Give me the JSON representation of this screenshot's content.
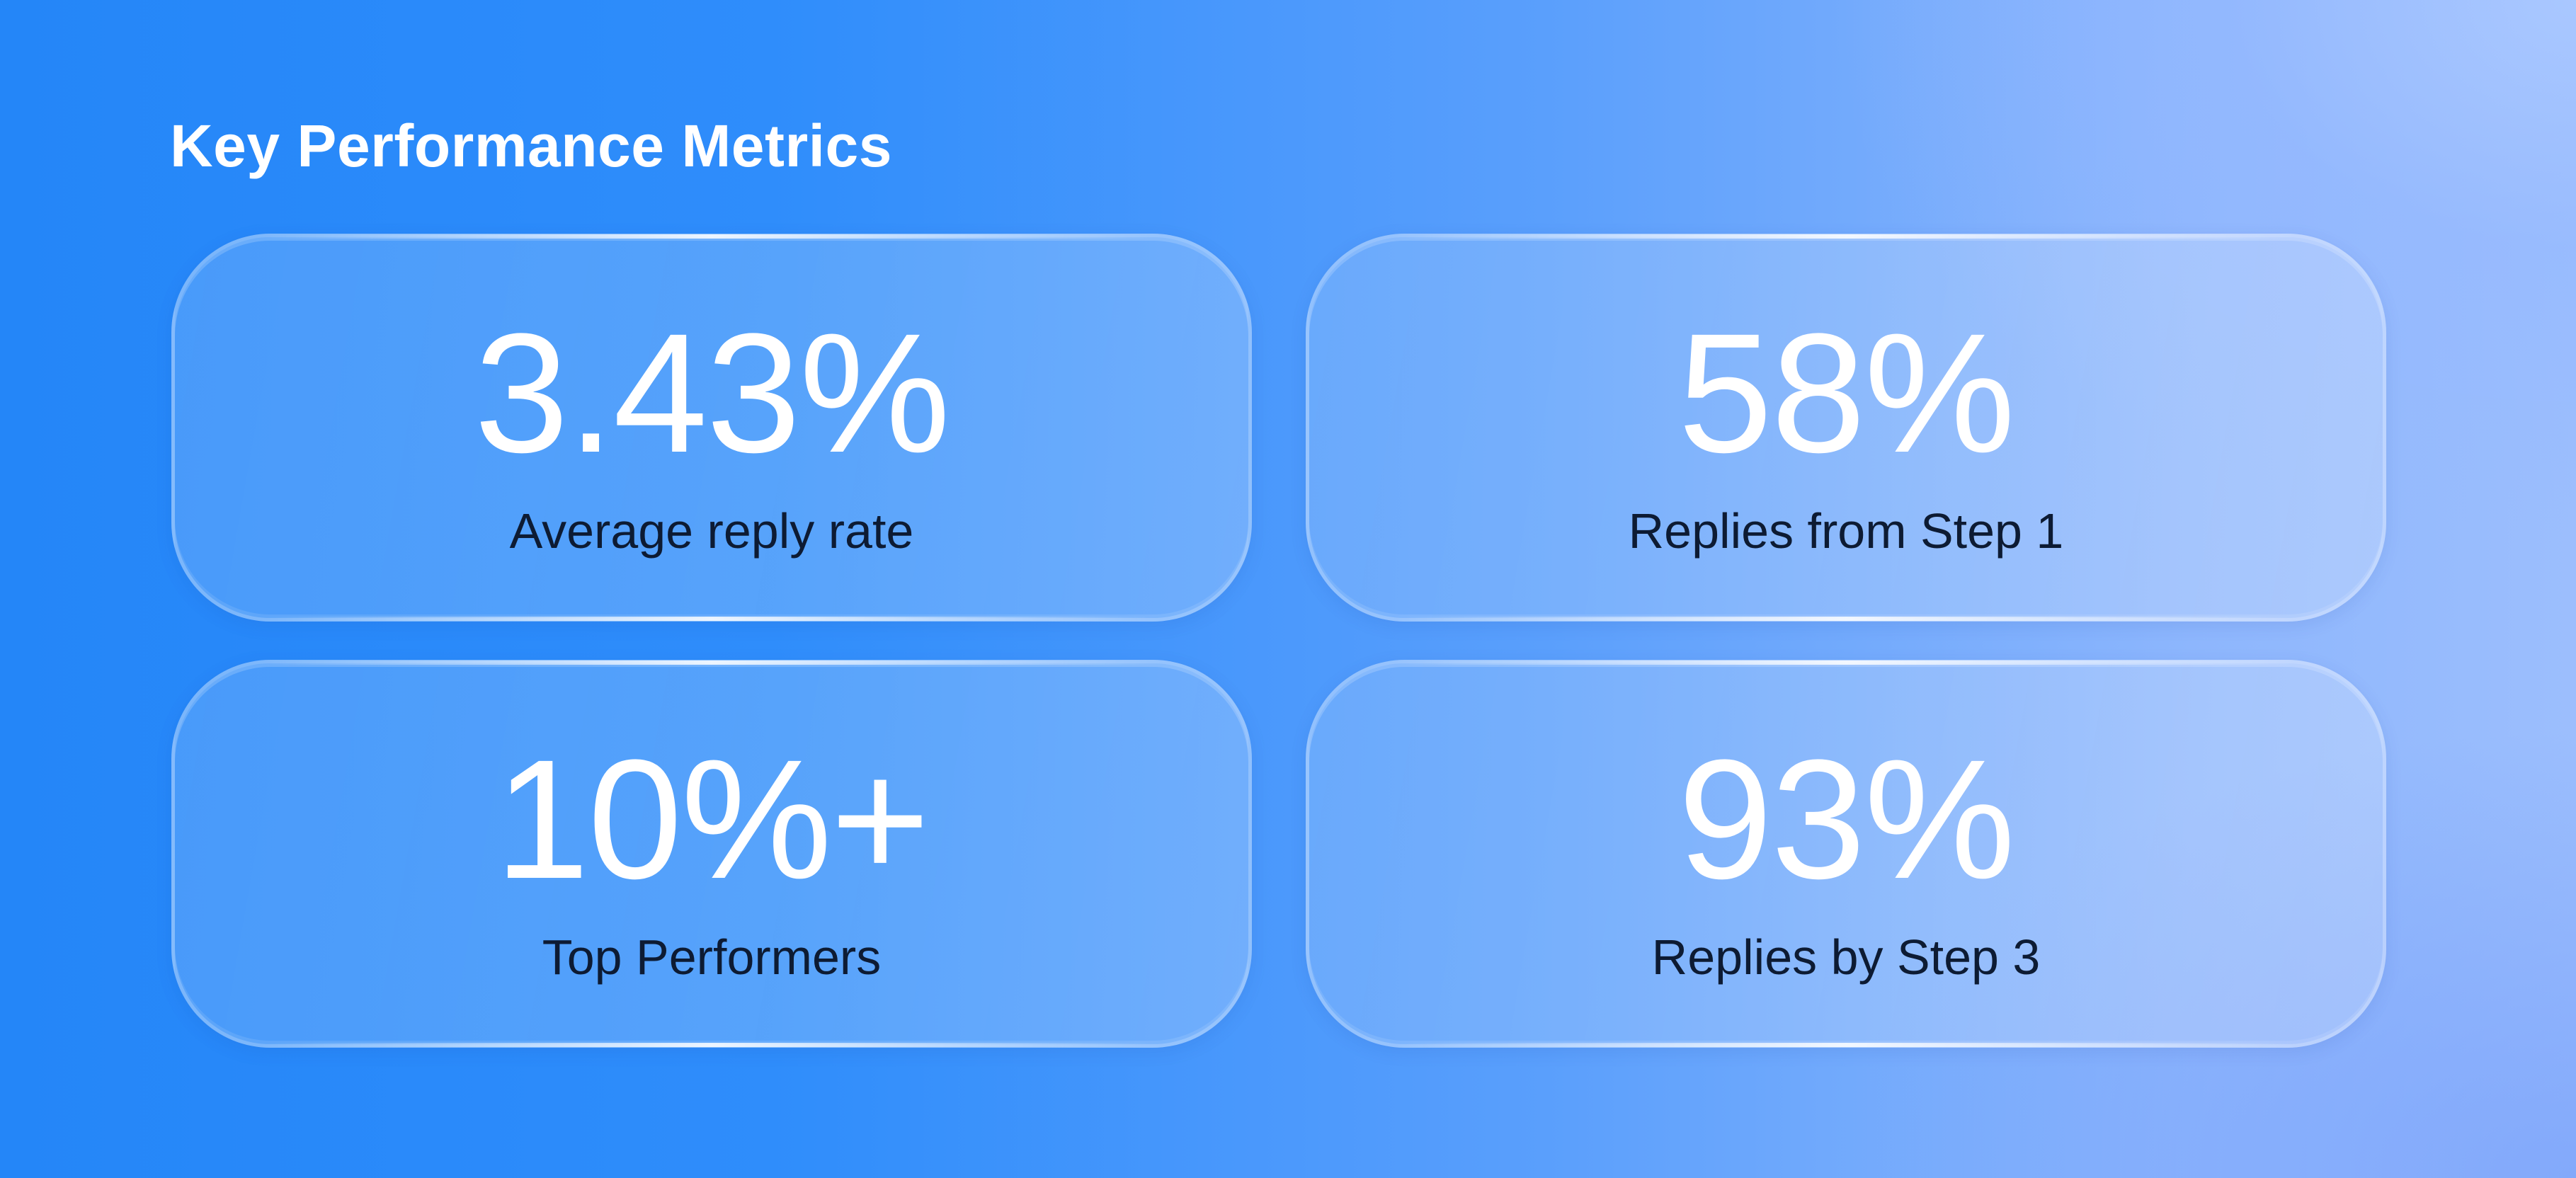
{
  "header": {
    "title": "Key Performance Metrics"
  },
  "metrics": [
    {
      "value": "3.43%",
      "label": "Average reply rate"
    },
    {
      "value": "58%",
      "label": "Replies from Step 1"
    },
    {
      "value": "10%+",
      "label": "Top Performers"
    },
    {
      "value": "93%",
      "label": "Replies by Step 3"
    }
  ],
  "colors": {
    "background_start": "#2486f8",
    "background_end": "#9cbefd",
    "value_text": "#ffffff",
    "label_text": "#0d1b33"
  }
}
